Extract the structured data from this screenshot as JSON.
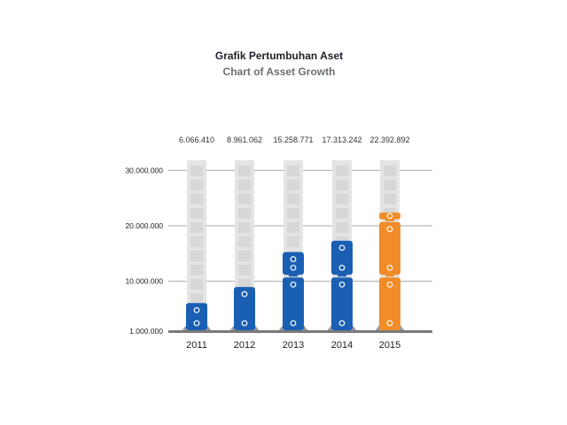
{
  "chart_data": {
    "type": "bar",
    "title": "Grafik Pertumbuhan Aset",
    "subtitle": "Chart of Asset Growth",
    "categories": [
      "2011",
      "2012",
      "2013",
      "2014",
      "2015"
    ],
    "values": [
      6066410,
      8961062,
      15258771,
      17313242,
      22392892
    ],
    "value_labels": [
      "6.066.410",
      "8.961.062",
      "15.258.771",
      "17.313.242",
      "22.392.892"
    ],
    "y_ticks": [
      {
        "value": 1000000,
        "label": "1.000.000"
      },
      {
        "value": 10000000,
        "label": "10.000.000"
      },
      {
        "value": 20000000,
        "label": "20.000.000"
      },
      {
        "value": 30000000,
        "label": "30.000.000"
      }
    ],
    "ylim": [
      1000000,
      31500000
    ],
    "grid": true,
    "colors": {
      "blue": "#1a5fb4",
      "orange": "#f28c28",
      "track": "#e4e4e4",
      "track_rung": "#cfcfcf",
      "grid": "#b8b8b8",
      "baseline": "#7a7a7a"
    },
    "highlight_category": "2015"
  }
}
